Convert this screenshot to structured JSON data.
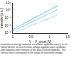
{
  "chart_data": {
    "type": "scatter",
    "x_label": "V − V_onset [V]",
    "y_label": "Intensity [a.u.]",
    "caption": "Evolution of energy radiation out of both opposite side(s) of the tunnel device versus the bias voltage applied (open symbols) and radiating after removal of the data (closed symbols). The vertical lines correspond to the range of saturation voltage.",
    "log": "y",
    "grid": false,
    "series": [
      {
        "color": "#5bb8d8",
        "marker": "circle",
        "line_style": "solid",
        "x": [
          0,
          0.3,
          0.6,
          0.9,
          1.2
        ],
        "values": [
          0.003,
          0.02,
          0.12,
          0.7,
          4
        ]
      },
      {
        "color": "#7cc8e2",
        "marker": "circle",
        "line_style": "solid",
        "x": [
          0,
          0.3,
          0.6,
          0.9,
          1.2
        ],
        "values": [
          0.002,
          0.01,
          0.05,
          0.25,
          1.2
        ]
      },
      {
        "color": "#9fd6ea",
        "marker": "circle",
        "line_style": "solid",
        "x": [
          0,
          0.3,
          0.6,
          0.9,
          1.2
        ],
        "values": [
          0.001,
          0.004,
          0.016,
          0.06,
          0.25
        ]
      }
    ],
    "xlim": [
      0,
      1.5
    ],
    "xticks": [
      0,
      0.5,
      1,
      1.5
    ],
    "ylim": [
      0.001,
      10
    ],
    "yticks": [
      {
        "value": 0.001,
        "label": "10⁻³"
      },
      {
        "value": 0.01,
        "label": "10⁻²"
      },
      {
        "value": 0.1,
        "label": "10⁻¹"
      },
      {
        "value": 1,
        "label": "10⁰"
      },
      {
        "value": 10,
        "label": "10¹"
      }
    ]
  }
}
